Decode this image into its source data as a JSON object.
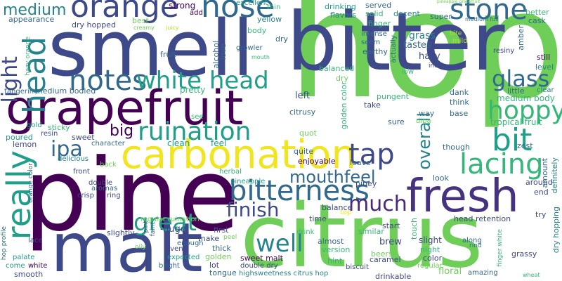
{
  "words": [
    {
      "text": "hop",
      "color": "#6ece58"
    },
    {
      "text": "pine",
      "color": "#440154"
    },
    {
      "text": "citrus",
      "color": "#6ece58"
    },
    {
      "text": "bitter",
      "color": "#3e4989"
    },
    {
      "text": "smell",
      "color": "#3e4989"
    },
    {
      "text": "malt",
      "color": "#3e4989"
    },
    {
      "text": "grapefruit",
      "color": "#440154"
    },
    {
      "text": "carbonation",
      "color": "#f0e51e"
    },
    {
      "text": "fresh",
      "color": "#46327e"
    },
    {
      "text": "orange",
      "color": "#3e4989"
    },
    {
      "text": "nose",
      "color": "#31688e"
    },
    {
      "text": "stone",
      "color": "#31688e"
    },
    {
      "text": "head",
      "color": "#26828e"
    },
    {
      "text": "notes",
      "color": "#31688e"
    },
    {
      "text": "white head",
      "color": "#1f9e89"
    },
    {
      "text": "really",
      "color": "#1f9e89"
    },
    {
      "text": "bitterness",
      "color": "#31688e"
    },
    {
      "text": "tap",
      "color": "#3e4989"
    },
    {
      "text": "ruination",
      "color": "#1f9e89"
    },
    {
      "text": "bit",
      "color": "#1f9e89"
    },
    {
      "text": "hoppy",
      "color": "#35b779"
    },
    {
      "text": "lacing",
      "color": "#35b779"
    },
    {
      "text": "glass",
      "color": "#31688e"
    },
    {
      "text": "light",
      "color": "#3e4989"
    },
    {
      "text": "finish",
      "color": "#3e4989"
    },
    {
      "text": "great",
      "color": "#1f9e89"
    },
    {
      "text": "well",
      "color": "#26828e"
    },
    {
      "text": "much",
      "color": "#482878"
    },
    {
      "text": "mouthfeel",
      "color": "#31688e"
    },
    {
      "text": "ipa",
      "color": "#31688e"
    },
    {
      "text": "big",
      "color": "#440154"
    },
    {
      "text": "overall",
      "color": "#26828e"
    },
    {
      "text": "medium",
      "color": "#26828e"
    },
    {
      "text": "strong",
      "color": "#440154"
    },
    {
      "text": "drinking",
      "color": "#1f9e89"
    },
    {
      "text": "served",
      "color": "#31688e"
    },
    {
      "text": "decent",
      "color": "#26828e"
    },
    {
      "text": "better",
      "color": "#35b779"
    },
    {
      "text": "cask",
      "color": "#31688e"
    },
    {
      "text": "grass",
      "color": "#26828e"
    },
    {
      "text": "tastes",
      "color": "#31688e"
    },
    {
      "text": "hazy",
      "color": "#3e4989"
    },
    {
      "text": "still",
      "color": "#440154"
    },
    {
      "text": "level",
      "color": "#26828e"
    },
    {
      "text": "clear",
      "color": "#26828e"
    },
    {
      "text": "medium body",
      "color": "#35b779"
    },
    {
      "text": "dank",
      "color": "#31688e"
    },
    {
      "text": "think",
      "color": "#31688e"
    },
    {
      "text": "base",
      "color": "#31688e"
    },
    {
      "text": "tropical fruit",
      "color": "#35b779"
    },
    {
      "text": "definitely",
      "color": "#26828e"
    },
    {
      "text": "though",
      "color": "#31688e"
    },
    {
      "text": "zest",
      "color": "#31688e"
    },
    {
      "text": "around",
      "color": "#3e4989"
    },
    {
      "text": "amount",
      "color": "#31688e"
    },
    {
      "text": "dry hopping",
      "color": "#26828e"
    },
    {
      "text": "try",
      "color": "#3e4989"
    },
    {
      "text": "end",
      "color": "#3e4989"
    },
    {
      "text": "look",
      "color": "#31688e"
    },
    {
      "text": "piney",
      "color": "#3e4989"
    },
    {
      "text": "leave",
      "color": "#31688e"
    },
    {
      "text": "enjoyable",
      "color": "#440154"
    },
    {
      "text": "quite",
      "color": "#31688e"
    },
    {
      "text": "dipa",
      "color": "#6ece58"
    },
    {
      "text": "way",
      "color": "#31688e"
    },
    {
      "text": "sure",
      "color": "#31688e"
    },
    {
      "text": "golden color",
      "color": "#35b779"
    },
    {
      "text": "take",
      "color": "#3e4989"
    },
    {
      "text": "left",
      "color": "#3e4989"
    },
    {
      "text": "pungent",
      "color": "#35b779"
    },
    {
      "text": "citrusy",
      "color": "#31688e"
    },
    {
      "text": "balanced",
      "color": "#35b779"
    },
    {
      "text": "dry",
      "color": "#6ece58"
    },
    {
      "text": "flavors",
      "color": "#26828e"
    },
    {
      "text": "solid",
      "color": "#35b779"
    },
    {
      "text": "finger",
      "color": "#35b779"
    },
    {
      "text": "intense",
      "color": "#31688e"
    },
    {
      "text": "seem",
      "color": "#31688e"
    },
    {
      "text": "earthy",
      "color": "#31688e"
    },
    {
      "text": "actually",
      "color": "#31688e"
    },
    {
      "text": "super",
      "color": "#31688e"
    },
    {
      "text": "mild",
      "color": "#b5de2b"
    },
    {
      "text": "bite",
      "color": "#b5de2b"
    },
    {
      "text": "low",
      "color": "#35b779"
    },
    {
      "text": "inch",
      "color": "#3e4989"
    },
    {
      "text": "resiny",
      "color": "#3e4989"
    },
    {
      "text": "amber",
      "color": "#31688e"
    },
    {
      "text": "little",
      "color": "#31688e"
    },
    {
      "text": "medium full",
      "color": "#31688e"
    },
    {
      "text": "pineapple grapefruit",
      "color": "#6ece58"
    },
    {
      "text": "appearance",
      "color": "#31688e"
    },
    {
      "text": "dry hopped",
      "color": "#3e4989"
    },
    {
      "text": "best",
      "color": "#6ece58"
    },
    {
      "text": "creamy",
      "color": "#6ece58"
    },
    {
      "text": "juicy",
      "color": "#b5de2b"
    },
    {
      "text": "add",
      "color": "#440154"
    },
    {
      "text": "thin",
      "color": "#35b779"
    },
    {
      "text": "excellent",
      "color": "#1f9e89"
    },
    {
      "text": "yellow",
      "color": "#26828e"
    },
    {
      "text": "alcohol",
      "color": "#31688e"
    },
    {
      "text": "love",
      "color": "#31688e"
    },
    {
      "text": "growler",
      "color": "#31688e"
    },
    {
      "text": "body",
      "color": "#35b779"
    },
    {
      "text": "dry",
      "color": "#31688e"
    },
    {
      "text": "mouth",
      "color": "#35b779"
    },
    {
      "text": "fruit",
      "color": "#31688e"
    },
    {
      "text": "pretty",
      "color": "#35b779"
    },
    {
      "text": "hazy orange",
      "color": "#35b779"
    },
    {
      "text": "tangerine",
      "color": "#31688e"
    },
    {
      "text": "medium bodied",
      "color": "#31688e"
    },
    {
      "text": "gold",
      "color": "#1f9e89"
    },
    {
      "text": "sticky",
      "color": "#35b779"
    },
    {
      "text": "resin",
      "color": "#3e4989"
    },
    {
      "text": "poured",
      "color": "#1f9e89"
    },
    {
      "text": "lemon",
      "color": "#3e4989"
    },
    {
      "text": "sweet",
      "color": "#3e4989"
    },
    {
      "text": "character",
      "color": "#31688e"
    },
    {
      "text": "see",
      "color": "#35b779"
    },
    {
      "text": "clean",
      "color": "#1f9e89"
    },
    {
      "text": "feel",
      "color": "#1f9e89"
    },
    {
      "text": "pineapple",
      "color": "#1f9e89"
    },
    {
      "text": "quot",
      "color": "#6ece58"
    },
    {
      "text": "delicious",
      "color": "#26828e"
    },
    {
      "text": "front",
      "color": "#3e4989"
    },
    {
      "text": "back",
      "color": "#6ece58"
    },
    {
      "text": "double",
      "color": "#3e4989"
    },
    {
      "text": "aromas",
      "color": "#31688e"
    },
    {
      "text": "ring",
      "color": "#3e4989"
    },
    {
      "text": "crisp",
      "color": "#3e4989"
    },
    {
      "text": "herbal",
      "color": "#35b779"
    },
    {
      "text": "orange color",
      "color": "#31688e"
    },
    {
      "text": "hop profile",
      "color": "#31688e"
    },
    {
      "text": "lace",
      "color": "#3e4989"
    },
    {
      "text": "palate",
      "color": "#1f9e89"
    },
    {
      "text": "come",
      "color": "#1f9e89"
    },
    {
      "text": "white",
      "color": "#440154"
    },
    {
      "text": "smooth",
      "color": "#3e4989"
    },
    {
      "text": "slightly",
      "color": "#3e4989"
    },
    {
      "text": "huge",
      "color": "#3e4989"
    },
    {
      "text": "regular ruination",
      "color": "#6ece58"
    },
    {
      "text": "even",
      "color": "#3e4989"
    },
    {
      "text": "expected",
      "color": "#1f9e89"
    },
    {
      "text": "bright",
      "color": "#31688e"
    },
    {
      "text": "enough",
      "color": "#31688e"
    },
    {
      "text": "lot",
      "color": "#3e4989"
    },
    {
      "text": "first",
      "color": "#3e4989"
    },
    {
      "text": "thick",
      "color": "#31688e"
    },
    {
      "text": "make",
      "color": "#3e4989"
    },
    {
      "text": "golden",
      "color": "#6ece58"
    },
    {
      "text": "tongue",
      "color": "#31688e"
    },
    {
      "text": "balance",
      "color": "#3e4989"
    },
    {
      "text": "top",
      "color": "#f0e51e"
    },
    {
      "text": "time",
      "color": "#3e4989"
    },
    {
      "text": "sweet malt",
      "color": "#440154"
    },
    {
      "text": "double dry",
      "color": "#3e4989"
    },
    {
      "text": "highsweetness citrus hop",
      "color": "#26828e"
    },
    {
      "text": "almost",
      "color": "#31688e"
    },
    {
      "text": "similar",
      "color": "#35b779"
    },
    {
      "text": "drink",
      "color": "#35b779"
    },
    {
      "text": "version",
      "color": "#35b779"
    },
    {
      "text": "hint",
      "color": "#35b779"
    },
    {
      "text": "start",
      "color": "#3e4989"
    },
    {
      "text": "touch",
      "color": "#35b779"
    },
    {
      "text": "brew",
      "color": "#3e4989"
    },
    {
      "text": "beers",
      "color": "#6ece58"
    },
    {
      "text": "caramel",
      "color": "#3e4989"
    },
    {
      "text": "biscuit",
      "color": "#3e4989"
    },
    {
      "text": "regular",
      "color": "#6ece58"
    },
    {
      "text": "drinkable",
      "color": "#3e4989"
    },
    {
      "text": "floral",
      "color": "#6ece58"
    },
    {
      "text": "slight",
      "color": "#3e4989"
    },
    {
      "text": "night",
      "color": "#35b779"
    },
    {
      "text": "color",
      "color": "#3e4989"
    },
    {
      "text": "amazing",
      "color": "#31688e"
    },
    {
      "text": "along",
      "color": "#31688e"
    },
    {
      "text": "rind",
      "color": "#31688e"
    },
    {
      "text": "head retention",
      "color": "#3e4989"
    },
    {
      "text": "grassy",
      "color": "#3e4989"
    },
    {
      "text": "finger white",
      "color": "#35b779"
    },
    {
      "text": "pint",
      "color": "#3e4989"
    },
    {
      "text": "faint",
      "color": "#31688e"
    },
    {
      "text": "oily",
      "color": "#6ece58"
    },
    {
      "text": "peel",
      "color": "#6ece58"
    },
    {
      "text": "wheat",
      "color": "#35b779"
    }
  ]
}
